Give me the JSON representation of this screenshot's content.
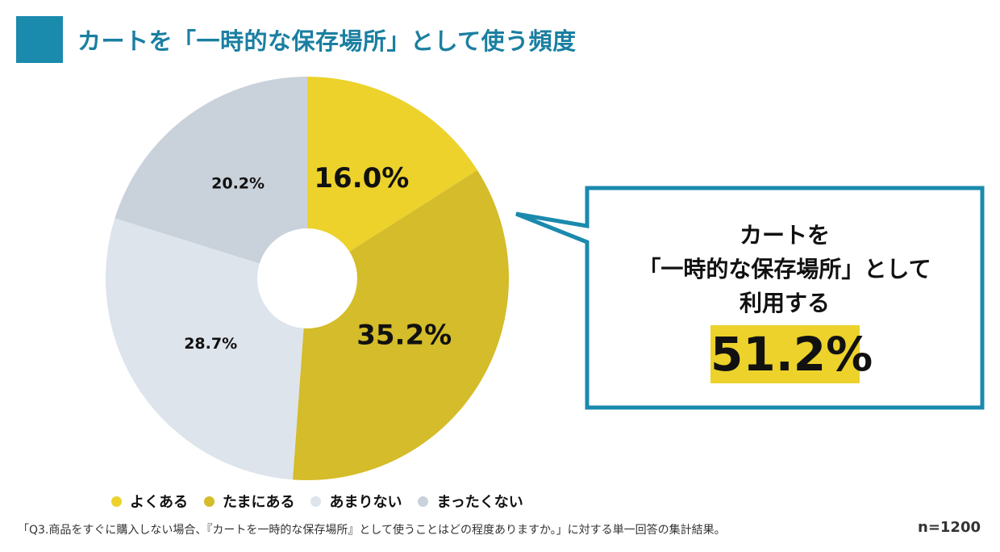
{
  "title": "カートを「一時的な保存場所」として使う頻度",
  "chart_data": {
    "type": "pie",
    "donut": true,
    "categories": [
      "よくある",
      "たまにある",
      "あまりない",
      "まったくない"
    ],
    "values": [
      16.0,
      35.2,
      28.7,
      20.2
    ],
    "labels": [
      "16.0%",
      "35.2%",
      "28.7%",
      "20.2%"
    ],
    "colors": [
      "#ecd22b",
      "#d4bc2a",
      "#dde4eb",
      "#c9d1da"
    ],
    "legend_position": "bottom"
  },
  "callout": {
    "line1": "カートを",
    "line2": "「一時的な保存場所」として",
    "line3": "利用する",
    "value": "51.2%",
    "border_color": "#1a8aad",
    "highlight_color": "#ecd22b"
  },
  "legend": [
    {
      "label": "よくある",
      "color": "#ecd22b"
    },
    {
      "label": "たまにある",
      "color": "#d4bc2a"
    },
    {
      "label": "あまりない",
      "color": "#dde4eb"
    },
    {
      "label": "まったくない",
      "color": "#c9d1da"
    }
  ],
  "footnote": "「Q3.商品をすぐに購入しない場合、『カートを一時的な保存場所』として使うことはどの程度ありますか。」に対する単一回答の集計結果。",
  "sample_size": "n=1200",
  "accent_color": "#1a8aad"
}
